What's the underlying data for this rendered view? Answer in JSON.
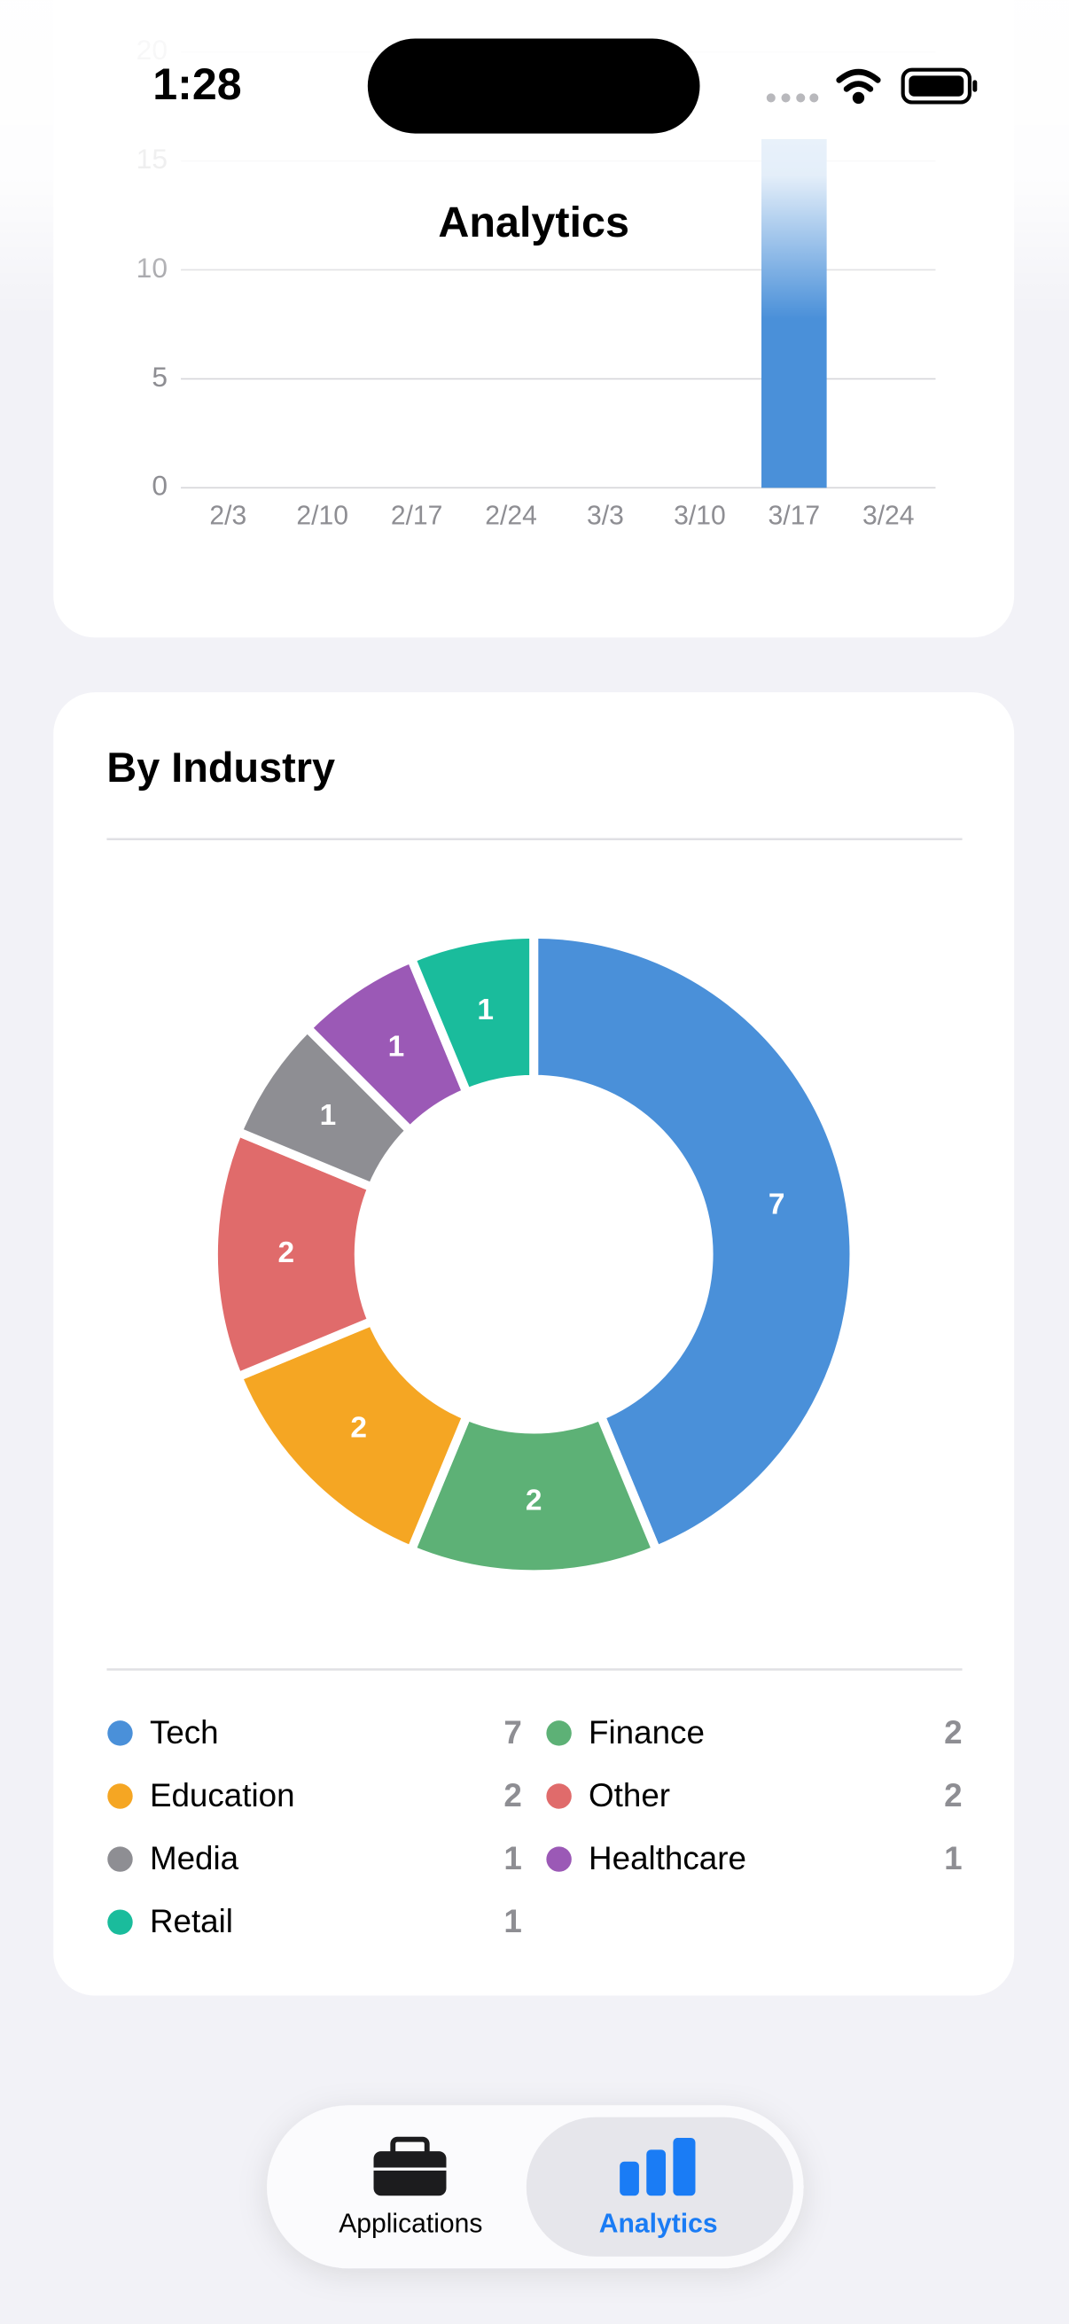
{
  "status_bar": {
    "time": "1:28"
  },
  "nav_title": "Analytics",
  "weekly_chart": {
    "type": "bar",
    "categories": [
      "2/3",
      "2/10",
      "2/17",
      "2/24",
      "3/3",
      "3/10",
      "3/17",
      "3/24"
    ],
    "values": [
      0,
      0,
      0,
      0,
      0,
      0,
      16,
      0
    ],
    "color": "#4a90d9",
    "ylim": [
      0,
      20
    ],
    "yticks": [
      0,
      5,
      10,
      15,
      20
    ],
    "grid": true
  },
  "industry_card": {
    "title": "By Industry",
    "chart": {
      "type": "donut",
      "categories": [
        "Tech",
        "Finance",
        "Education",
        "Other",
        "Media",
        "Healthcare",
        "Retail"
      ],
      "values": [
        7,
        2,
        2,
        2,
        1,
        1,
        1
      ],
      "colors": [
        "#4a90d9",
        "#5db176",
        "#f5a623",
        "#e06b6b",
        "#8e8e93",
        "#9b59b6",
        "#1abc9c"
      ]
    }
  },
  "tab_bar": {
    "tabs": [
      "Applications",
      "Analytics"
    ],
    "selected": 1
  }
}
